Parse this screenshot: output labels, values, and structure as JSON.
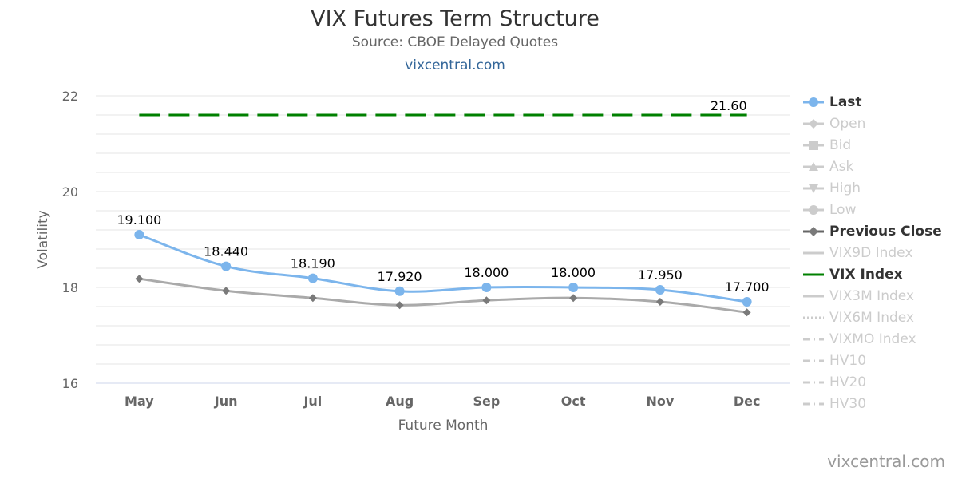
{
  "chart_data": {
    "type": "line",
    "title": "VIX Futures Term Structure",
    "subtitle": "Source: CBOE Delayed Quotes",
    "subtitle_link": "vixcentral.com",
    "xlabel": "Future Month",
    "ylabel": "Volatility",
    "categories": [
      "May",
      "Jun",
      "Jul",
      "Aug",
      "Sep",
      "Oct",
      "Nov",
      "Dec"
    ],
    "ylim": [
      16,
      22
    ],
    "yticks": [
      16,
      18,
      20,
      22
    ],
    "grid": true,
    "legend_position": "right",
    "series": [
      {
        "name": "Last",
        "values": [
          19.1,
          18.44,
          18.19,
          17.92,
          18.0,
          18.0,
          17.95,
          17.7
        ],
        "labels": [
          "19.100",
          "18.440",
          "18.190",
          "17.920",
          "18.000",
          "18.000",
          "17.950",
          "17.700"
        ],
        "color": "#7cb5ec"
      },
      {
        "name": "Previous Close",
        "values": [
          18.18,
          17.93,
          17.78,
          17.63,
          17.73,
          17.78,
          17.7,
          17.48
        ],
        "color": "#aaaaaa"
      },
      {
        "name": "VIX Index",
        "values": [
          21.6,
          21.6,
          21.6,
          21.6,
          21.6,
          21.6,
          21.6,
          21.6
        ],
        "end_label": "21.60",
        "color": "#008000"
      }
    ]
  },
  "legend": [
    {
      "label": "Last",
      "active": true,
      "icon": "circle-line-icon",
      "color": "#7cb5ec"
    },
    {
      "label": "Open",
      "active": false,
      "icon": "diamond-line-icon",
      "color": "#cccccc"
    },
    {
      "label": "Bid",
      "active": false,
      "icon": "square-line-icon",
      "color": "#cccccc"
    },
    {
      "label": "Ask",
      "active": false,
      "icon": "triangle-line-icon",
      "color": "#cccccc"
    },
    {
      "label": "High",
      "active": false,
      "icon": "triangle-down-line-icon",
      "color": "#cccccc"
    },
    {
      "label": "Low",
      "active": false,
      "icon": "circle-line-icon",
      "color": "#cccccc"
    },
    {
      "label": "Previous Close",
      "active": true,
      "icon": "diamond-line-icon",
      "color": "#666666"
    },
    {
      "label": "VIX9D Index",
      "active": false,
      "icon": "solid-line-icon",
      "color": "#cccccc"
    },
    {
      "label": "VIX Index",
      "active": true,
      "icon": "solid-line-icon",
      "color": "#008000"
    },
    {
      "label": "VIX3M Index",
      "active": false,
      "icon": "solid-line-icon",
      "color": "#cccccc"
    },
    {
      "label": "VIX6M Index",
      "active": false,
      "icon": "dotted-line-icon",
      "color": "#cccccc"
    },
    {
      "label": "VIXMO Index",
      "active": false,
      "icon": "dash-dot-line-icon",
      "color": "#cccccc"
    },
    {
      "label": "HV10",
      "active": false,
      "icon": "dash-dot-line-icon",
      "color": "#cccccc"
    },
    {
      "label": "HV20",
      "active": false,
      "icon": "dash-dot-line-icon",
      "color": "#cccccc"
    },
    {
      "label": "HV30",
      "active": false,
      "icon": "dash-dot-line-icon",
      "color": "#cccccc"
    }
  ],
  "credit": "vixcentral.com"
}
